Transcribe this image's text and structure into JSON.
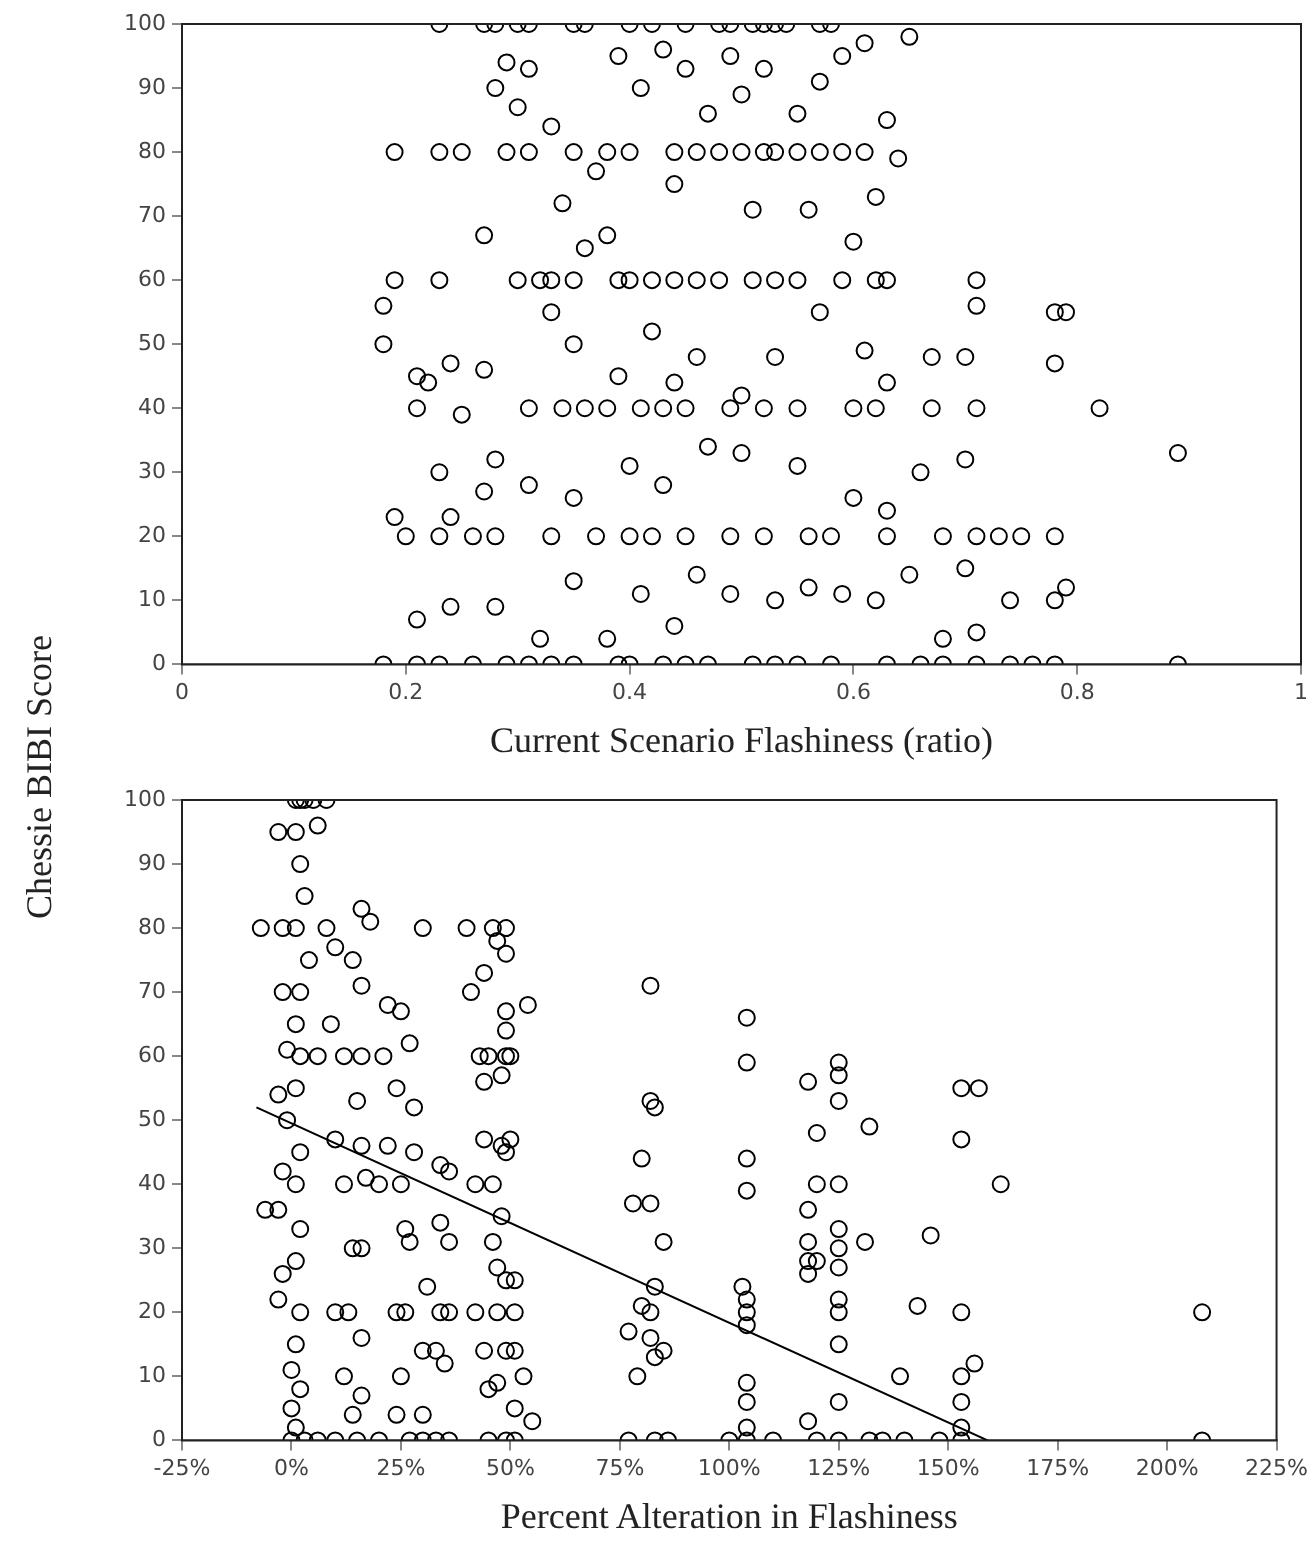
{
  "chart_data": [
    {
      "type": "scatter",
      "xlabel": "Current Scenario Flashiness (ratio)",
      "ylabel": "Chessie BIBI Score",
      "xlim": [
        0,
        1
      ],
      "xticks": [
        0,
        0.2,
        0.4,
        0.6,
        0.8,
        1
      ],
      "ylim": [
        0,
        100
      ],
      "yticks": [
        0,
        10,
        20,
        30,
        40,
        50,
        60,
        70,
        80,
        90,
        100
      ],
      "grid": false,
      "legend": false,
      "marker": "circle",
      "series": [
        {
          "color": "#000000",
          "x": [
            0.23,
            0.27,
            0.28,
            0.3,
            0.31,
            0.35,
            0.36,
            0.4,
            0.42,
            0.45,
            0.48,
            0.49,
            0.51,
            0.52,
            0.53,
            0.54,
            0.57,
            0.58,
            0.65,
            0.19,
            0.23,
            0.25,
            0.29,
            0.31,
            0.35,
            0.38,
            0.4,
            0.44,
            0.46,
            0.48,
            0.5,
            0.52,
            0.53,
            0.55,
            0.57,
            0.59,
            0.61,
            0.19,
            0.23,
            0.3,
            0.32,
            0.33,
            0.35,
            0.39,
            0.4,
            0.42,
            0.44,
            0.46,
            0.48,
            0.51,
            0.53,
            0.55,
            0.59,
            0.62,
            0.63,
            0.71,
            0.21,
            0.31,
            0.34,
            0.36,
            0.38,
            0.41,
            0.43,
            0.45,
            0.49,
            0.52,
            0.55,
            0.6,
            0.62,
            0.67,
            0.71,
            0.82,
            0.2,
            0.23,
            0.26,
            0.28,
            0.33,
            0.37,
            0.4,
            0.42,
            0.45,
            0.49,
            0.52,
            0.56,
            0.58,
            0.63,
            0.68,
            0.71,
            0.73,
            0.75,
            0.78,
            0.18,
            0.21,
            0.23,
            0.26,
            0.29,
            0.31,
            0.33,
            0.35,
            0.39,
            0.4,
            0.43,
            0.45,
            0.47,
            0.51,
            0.53,
            0.55,
            0.58,
            0.63,
            0.66,
            0.68,
            0.71,
            0.74,
            0.76,
            0.78,
            0.89,
            0.18,
            0.18,
            0.21,
            0.22,
            0.24,
            0.25,
            0.27,
            0.28,
            0.27,
            0.28,
            0.29,
            0.3,
            0.31,
            0.33,
            0.34,
            0.36,
            0.37,
            0.39,
            0.41,
            0.43,
            0.45,
            0.47,
            0.49,
            0.5,
            0.52,
            0.55,
            0.57,
            0.59,
            0.61,
            0.63,
            0.64,
            0.62,
            0.6,
            0.56,
            0.51,
            0.44,
            0.38,
            0.33,
            0.35,
            0.39,
            0.42,
            0.44,
            0.46,
            0.5,
            0.53,
            0.57,
            0.61,
            0.63,
            0.67,
            0.7,
            0.78,
            0.79,
            0.78,
            0.71,
            0.89,
            0.7,
            0.66,
            0.63,
            0.6,
            0.55,
            0.5,
            0.47,
            0.43,
            0.4,
            0.35,
            0.31,
            0.27,
            0.23,
            0.24,
            0.19,
            0.21,
            0.24,
            0.28,
            0.32,
            0.35,
            0.38,
            0.41,
            0.44,
            0.46,
            0.49,
            0.53,
            0.56,
            0.59,
            0.62,
            0.65,
            0.7,
            0.74,
            0.78,
            0.79,
            0.71,
            0.68
          ],
          "values": [
            100,
            100,
            100,
            100,
            100,
            100,
            100,
            100,
            100,
            100,
            100,
            100,
            100,
            100,
            100,
            100,
            100,
            100,
            98,
            80,
            80,
            80,
            80,
            80,
            80,
            80,
            80,
            80,
            80,
            80,
            80,
            80,
            80,
            80,
            80,
            80,
            80,
            60,
            60,
            60,
            60,
            60,
            60,
            60,
            60,
            60,
            60,
            60,
            60,
            60,
            60,
            60,
            60,
            60,
            60,
            60,
            40,
            40,
            40,
            40,
            40,
            40,
            40,
            40,
            40,
            40,
            40,
            40,
            40,
            40,
            40,
            40,
            20,
            20,
            20,
            20,
            20,
            20,
            20,
            20,
            20,
            20,
            20,
            20,
            20,
            20,
            20,
            20,
            20,
            20,
            20,
            0,
            0,
            0,
            0,
            0,
            0,
            0,
            0,
            0,
            0,
            0,
            0,
            0,
            0,
            0,
            0,
            0,
            0,
            0,
            0,
            0,
            0,
            0,
            0,
            0,
            56,
            50,
            45,
            44,
            47,
            39,
            46,
            32,
            67,
            90,
            94,
            87,
            93,
            84,
            72,
            65,
            77,
            95,
            90,
            96,
            93,
            86,
            95,
            89,
            93,
            86,
            91,
            95,
            97,
            85,
            79,
            73,
            66,
            71,
            71,
            75,
            67,
            55,
            50,
            45,
            52,
            44,
            48,
            42,
            48,
            55,
            49,
            44,
            48,
            48,
            55,
            55,
            47,
            56,
            33,
            32,
            30,
            24,
            26,
            31,
            33,
            34,
            28,
            31,
            26,
            28,
            27,
            30,
            23,
            23,
            7,
            9,
            9,
            4,
            13,
            4,
            11,
            6,
            14,
            11,
            10,
            12,
            11,
            10,
            14,
            15,
            10,
            10,
            12,
            5,
            4
          ]
        }
      ]
    },
    {
      "type": "scatter",
      "xlabel": "Percent Alteration in Flashiness",
      "xlim": [
        -25,
        225
      ],
      "xticks": [
        {
          "value": -25,
          "label": "-25%"
        },
        {
          "value": 0,
          "label": "0%"
        },
        {
          "value": 25,
          "label": "25%"
        },
        {
          "value": 50,
          "label": "50%"
        },
        {
          "value": 75,
          "label": "75%"
        },
        {
          "value": 100,
          "label": "100%"
        },
        {
          "value": 125,
          "label": "125%"
        },
        {
          "value": 150,
          "label": "150%"
        },
        {
          "value": 175,
          "label": "175%"
        },
        {
          "value": 200,
          "label": "200%"
        },
        {
          "value": 225,
          "label": "225%"
        }
      ],
      "ylim": [
        0,
        100
      ],
      "yticks": [
        0,
        10,
        20,
        30,
        40,
        50,
        60,
        70,
        80,
        90,
        100
      ],
      "grid": false,
      "legend": false,
      "marker": "circle",
      "series": [
        {
          "color": "#000000",
          "x": [
            1,
            2,
            3,
            5,
            8,
            1,
            -3,
            6,
            2,
            3,
            1,
            -7,
            -2,
            4,
            2,
            -2,
            1,
            -1,
            2,
            6,
            1,
            -3,
            -1,
            2,
            -2,
            1,
            -6,
            -3,
            2,
            1,
            -2,
            -3,
            2,
            1,
            0,
            2,
            0,
            1,
            0,
            3,
            6,
            10,
            8,
            10,
            16,
            18,
            14,
            16,
            9,
            12,
            16,
            15,
            10,
            16,
            12,
            17,
            14,
            16,
            10,
            13,
            16,
            12,
            16,
            14,
            15,
            20,
            22,
            25,
            21,
            27,
            24,
            28,
            22,
            28,
            20,
            25,
            26,
            27,
            31,
            24,
            26,
            30,
            25,
            30,
            27,
            30,
            34,
            36,
            34,
            36,
            34,
            36,
            33,
            35,
            33,
            36,
            30,
            24,
            40,
            41,
            46,
            47,
            49,
            49,
            44,
            43,
            45,
            49,
            50,
            49,
            49,
            54,
            44,
            48,
            50,
            44,
            48,
            46,
            48,
            46,
            47,
            49,
            51,
            42,
            47,
            51,
            44,
            49,
            51,
            45,
            47,
            51,
            53,
            55,
            45,
            49,
            51,
            42,
            49,
            82,
            82,
            83,
            80,
            78,
            82,
            85,
            83,
            80,
            82,
            82,
            83,
            85,
            79,
            77,
            77,
            83,
            86,
            104,
            104,
            104,
            104,
            103,
            104,
            104,
            104,
            104,
            104,
            104,
            100,
            104,
            110,
            118,
            120,
            118,
            118,
            118,
            118,
            120,
            120,
            125,
            125,
            125,
            125,
            125,
            125,
            125,
            125,
            125,
            125,
            125,
            118,
            120,
            125,
            132,
            131,
            139,
            132,
            135,
            146,
            143,
            153,
            157,
            153,
            153,
            153,
            153,
            156,
            162,
            140,
            148,
            153,
            153,
            208,
            208
          ],
          "values": [
            100,
            100,
            100,
            100,
            100,
            95,
            95,
            96,
            90,
            85,
            80,
            80,
            80,
            75,
            70,
            70,
            65,
            61,
            60,
            60,
            55,
            54,
            50,
            45,
            42,
            40,
            36,
            36,
            33,
            28,
            26,
            22,
            20,
            15,
            11,
            8,
            5,
            2,
            0,
            0,
            0,
            0,
            80,
            77,
            83,
            81,
            75,
            71,
            65,
            60,
            60,
            53,
            47,
            46,
            40,
            41,
            30,
            30,
            20,
            20,
            16,
            10,
            7,
            4,
            0,
            0,
            68,
            67,
            60,
            62,
            55,
            52,
            46,
            45,
            40,
            40,
            33,
            31,
            24,
            20,
            20,
            14,
            10,
            4,
            0,
            0,
            43,
            42,
            34,
            31,
            20,
            20,
            14,
            12,
            0,
            0,
            80,
            4,
            80,
            70,
            80,
            78,
            80,
            76,
            73,
            60,
            60,
            60,
            60,
            64,
            67,
            68,
            56,
            57,
            47,
            47,
            46,
            40,
            35,
            31,
            27,
            25,
            25,
            20,
            20,
            20,
            14,
            14,
            14,
            8,
            9,
            5,
            10,
            3,
            0,
            0,
            0,
            40,
            45,
            71,
            53,
            52,
            44,
            37,
            37,
            31,
            24,
            21,
            20,
            16,
            13,
            14,
            10,
            17,
            0,
            0,
            0,
            66,
            59,
            44,
            39,
            24,
            22,
            20,
            18,
            9,
            6,
            2,
            0,
            0,
            0,
            56,
            48,
            36,
            31,
            28,
            26,
            28,
            40,
            59,
            57,
            53,
            40,
            33,
            30,
            27,
            22,
            20,
            15,
            6,
            3,
            0,
            0,
            49,
            31,
            10,
            0,
            0,
            32,
            21,
            55,
            55,
            47,
            20,
            10,
            6,
            12,
            40,
            0,
            0,
            0,
            2,
            20,
            0
          ]
        },
        {
          "type": "line",
          "color": "#000000",
          "marker": "none",
          "x": [
            -8,
            159
          ],
          "values": [
            52,
            0
          ]
        }
      ]
    }
  ]
}
